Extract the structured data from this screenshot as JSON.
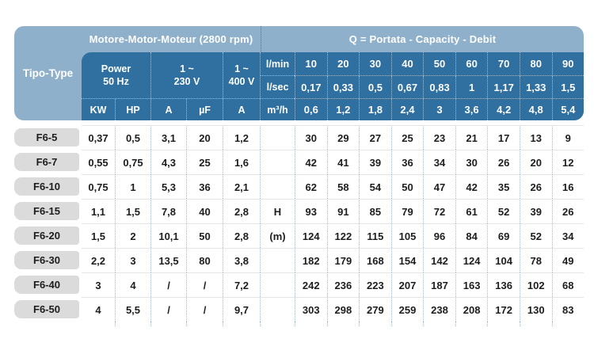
{
  "header": {
    "tipo_label": "Tipo-Type",
    "motor_title": "Motore-Motor-Moteur  (2800 rpm)",
    "flow_title": "Q = Portata - Capacity - Debit",
    "power_line1": "Power",
    "power_line2": "50 Hz",
    "v230_line1": "1 ~",
    "v230_line2": "230 V",
    "v400_line1": "1 ~",
    "v400_line2": "400 V",
    "unit_lmin": "l/min",
    "unit_lsec": "l/sec",
    "unit_m3h": "m³/h",
    "sub_cols": [
      "KW",
      "HP",
      "A",
      "µF",
      "A"
    ],
    "lmin_values": [
      "10",
      "20",
      "30",
      "40",
      "50",
      "60",
      "70",
      "80",
      "90"
    ],
    "lsec_values": [
      "0,17",
      "0,33",
      "0,5",
      "0,67",
      "0,83",
      "1",
      "1,17",
      "1,33",
      "1,5"
    ],
    "m3h_values": [
      "0,6",
      "1,2",
      "1,8",
      "2,4",
      "3",
      "3,6",
      "4,2",
      "4,8",
      "5,4"
    ]
  },
  "rows": [
    {
      "type": "F6-5",
      "kw": "0,37",
      "hp": "0,5",
      "a230": "3,1",
      "uf": "20",
      "a400": "1,2",
      "unit": "",
      "head": [
        "30",
        "29",
        "27",
        "25",
        "23",
        "21",
        "17",
        "13",
        "9"
      ]
    },
    {
      "type": "F6-7",
      "kw": "0,55",
      "hp": "0,75",
      "a230": "4,3",
      "uf": "25",
      "a400": "1,6",
      "unit": "",
      "head": [
        "42",
        "41",
        "39",
        "36",
        "34",
        "30",
        "26",
        "20",
        "12"
      ]
    },
    {
      "type": "F6-10",
      "kw": "0,75",
      "hp": "1",
      "a230": "5,3",
      "uf": "36",
      "a400": "2,1",
      "unit": "",
      "head": [
        "62",
        "58",
        "54",
        "50",
        "47",
        "42",
        "35",
        "26",
        "16"
      ]
    },
    {
      "type": "F6-15",
      "kw": "1,1",
      "hp": "1,5",
      "a230": "7,8",
      "uf": "40",
      "a400": "2,8",
      "unit": "H",
      "head": [
        "93",
        "91",
        "85",
        "79",
        "72",
        "61",
        "52",
        "39",
        "26"
      ]
    },
    {
      "type": "F6-20",
      "kw": "1,5",
      "hp": "2",
      "a230": "10,1",
      "uf": "50",
      "a400": "2,8",
      "unit": "(m)",
      "head": [
        "124",
        "122",
        "115",
        "105",
        "96",
        "84",
        "69",
        "52",
        "34"
      ]
    },
    {
      "type": "F6-30",
      "kw": "2,2",
      "hp": "3",
      "a230": "13,5",
      "uf": "80",
      "a400": "3,8",
      "unit": "",
      "head": [
        "182",
        "179",
        "168",
        "154",
        "142",
        "124",
        "104",
        "78",
        "49"
      ]
    },
    {
      "type": "F6-40",
      "kw": "3",
      "hp": "4",
      "a230": "/",
      "uf": "/",
      "a400": "7,2",
      "unit": "",
      "head": [
        "242",
        "236",
        "223",
        "207",
        "187",
        "163",
        "136",
        "102",
        "68"
      ]
    },
    {
      "type": "F6-50",
      "kw": "4",
      "hp": "5,5",
      "a230": "/",
      "uf": "/",
      "a400": "9,7",
      "unit": "",
      "head": [
        "303",
        "298",
        "279",
        "259",
        "238",
        "208",
        "172",
        "130",
        "83"
      ]
    }
  ],
  "colors": {
    "header_light": "#8fb0ca",
    "header_dark": "#2f70a0",
    "row_label_bg": "#dbdbdb",
    "grid_dots": "#9cc1d7",
    "text_dark": "#1d1d20"
  }
}
